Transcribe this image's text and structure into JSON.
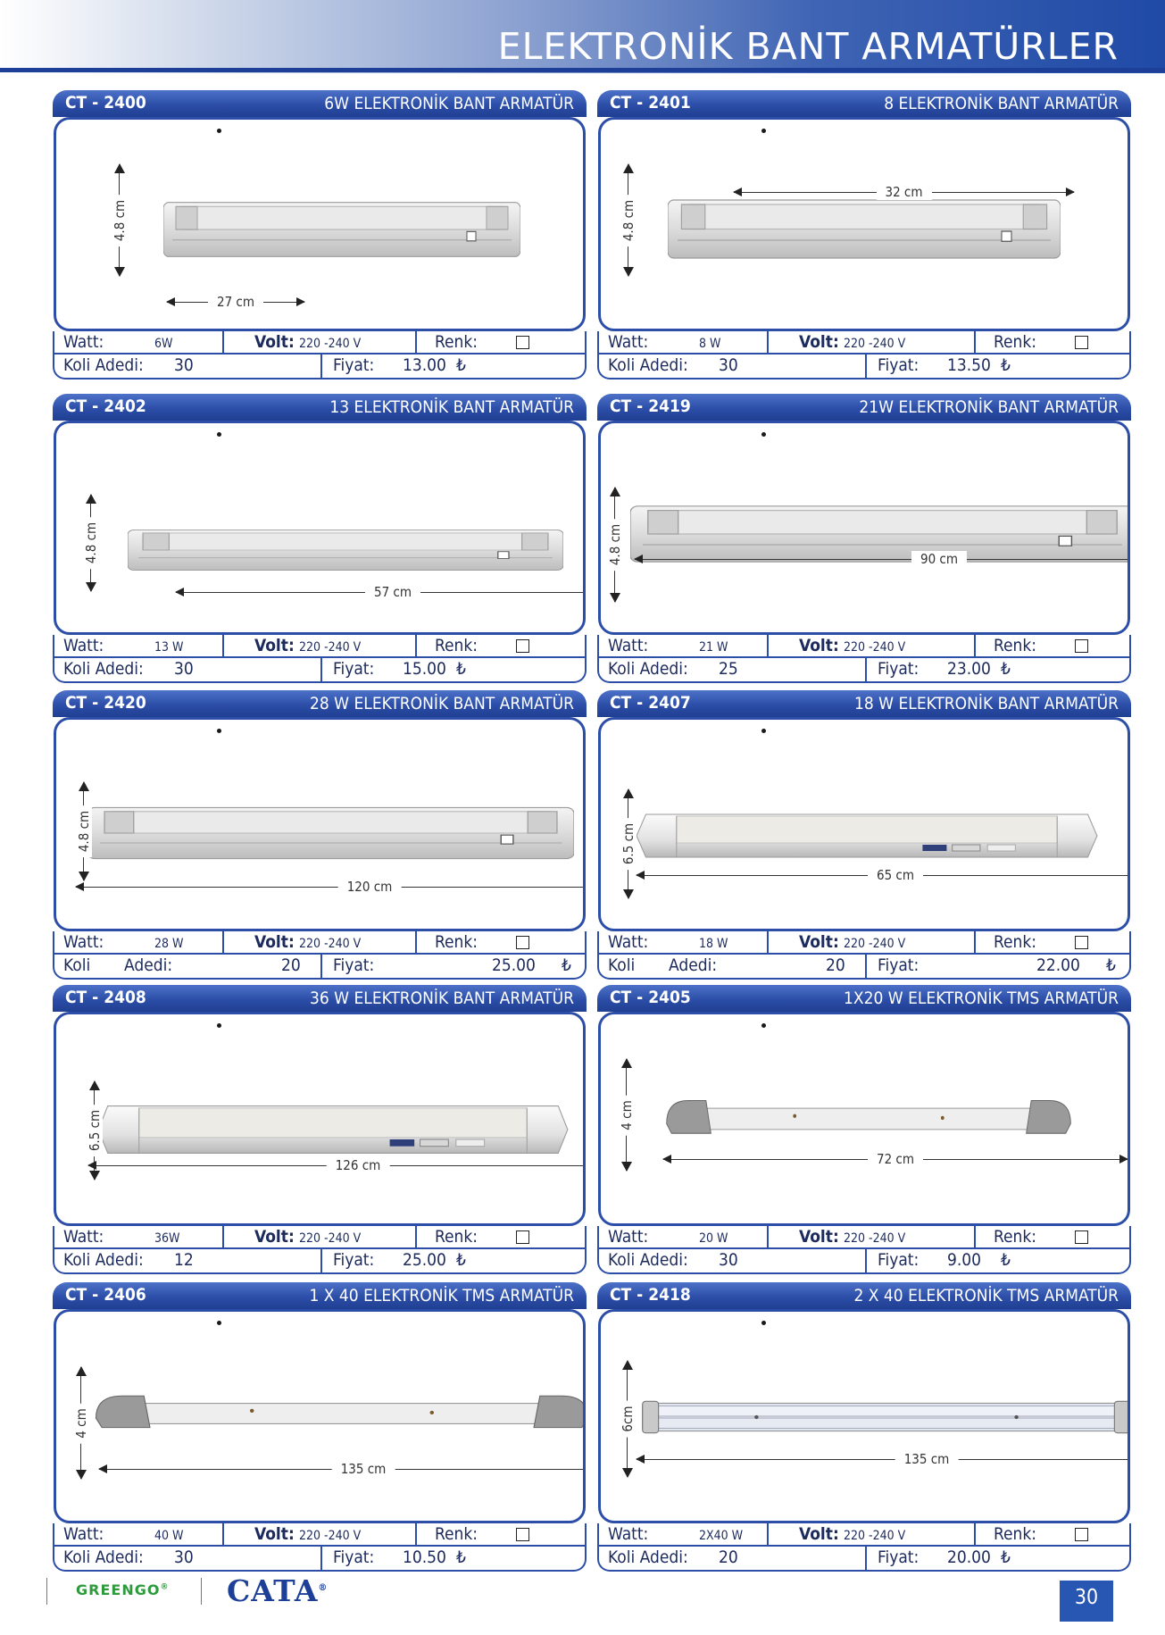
{
  "page": {
    "title": "ELEKTRONİK BANT ARMATÜRLER",
    "page_number": "30",
    "brand_left": "GREENGO",
    "brand_left_mark": "®",
    "brand_right": "CATA",
    "brand_right_mark": "®"
  },
  "labels": {
    "watt": "Watt:",
    "volt": "Volt:",
    "renk": "Renk:",
    "koli_adedi": "Koli Adedi:",
    "koli": "Koli",
    "adedi": "Adedi:",
    "fiyat": "Fiyat:",
    "currency": "₺"
  },
  "products": [
    {
      "code": "CT - 2400",
      "title": "6W ELEKTRONİK BANT ARMATÜR",
      "watt": "6W",
      "volt": "220 -240 V",
      "koli": "30",
      "fiyat": "13.00",
      "length": "27 cm",
      "height": "4.8 cm",
      "lamp": "batten"
    },
    {
      "code": "CT - 2401",
      "title": "8 ELEKTRONİK BANT ARMATÜR",
      "watt": "8  W",
      "volt": "220 -240 V",
      "koli": "30",
      "fiyat": "13.50",
      "length": "32 cm",
      "height": "4.8 cm",
      "lamp": "batten"
    },
    {
      "code": "CT - 2402",
      "title": "13 ELEKTRONİK BANT ARMATÜR",
      "watt": "13 W",
      "volt": "220 -240 V",
      "koli": "30",
      "fiyat": "15.00",
      "length": "57 cm",
      "height": "4.8 cm",
      "lamp": "batten"
    },
    {
      "code": "CT - 2419",
      "title": "21W ELEKTRONİK BANT ARMATÜR",
      "watt": "21 W",
      "volt": "220 -240 V",
      "koli": "25",
      "fiyat": "23.00",
      "length": "90 cm",
      "height": "4.8 cm",
      "lamp": "batten"
    },
    {
      "code": "CT - 2420",
      "title": "28 W ELEKTRONİK BANT ARMATÜR",
      "watt": "28 W",
      "volt": "220 -240 V",
      "koli": "20",
      "fiyat": "25.00",
      "length": "120 cm",
      "height": "4.8 cm",
      "lamp": "batten"
    },
    {
      "code": "CT - 2407",
      "title": "18 W ELEKTRONİK BANT ARMATÜR",
      "watt": "18 W",
      "volt": "220 -240 V",
      "koli": "20",
      "fiyat": "22.00",
      "length": "65 cm",
      "height": "6.5 cm",
      "lamp": "box"
    },
    {
      "code": "CT - 2408",
      "title": "36 W ELEKTRONİK BANT ARMATÜR",
      "watt": "36W",
      "volt": "220 -240 V",
      "koli": "12",
      "fiyat": "25.00",
      "length": "126 cm",
      "height": "6.5 cm",
      "lamp": "box"
    },
    {
      "code": "CT - 2405",
      "title": "1X20 W  ELEKTRONİK TMS ARMATÜR",
      "watt": "20 W",
      "volt": "220 -240 V",
      "koli": "30",
      "fiyat": "9.00",
      "length": "72 cm",
      "height": "4 cm",
      "lamp": "tms"
    },
    {
      "code": "CT - 2406",
      "title": "1 X 40 ELEKTRONİK TMS ARMATÜR",
      "watt": "40 W",
      "volt": "220 -240 V",
      "koli": "30",
      "fiyat": "10.50",
      "length": "135 cm",
      "height": "4 cm",
      "lamp": "tms"
    },
    {
      "code": "CT - 2418",
      "title": "2 X 40 ELEKTRONİK TMS ARMATÜR",
      "watt": "2X40 W",
      "volt": "220 -240 V",
      "koli": "20",
      "fiyat": "20.00",
      "length": "135 cm",
      "height": "6cm",
      "lamp": "twin"
    }
  ]
}
